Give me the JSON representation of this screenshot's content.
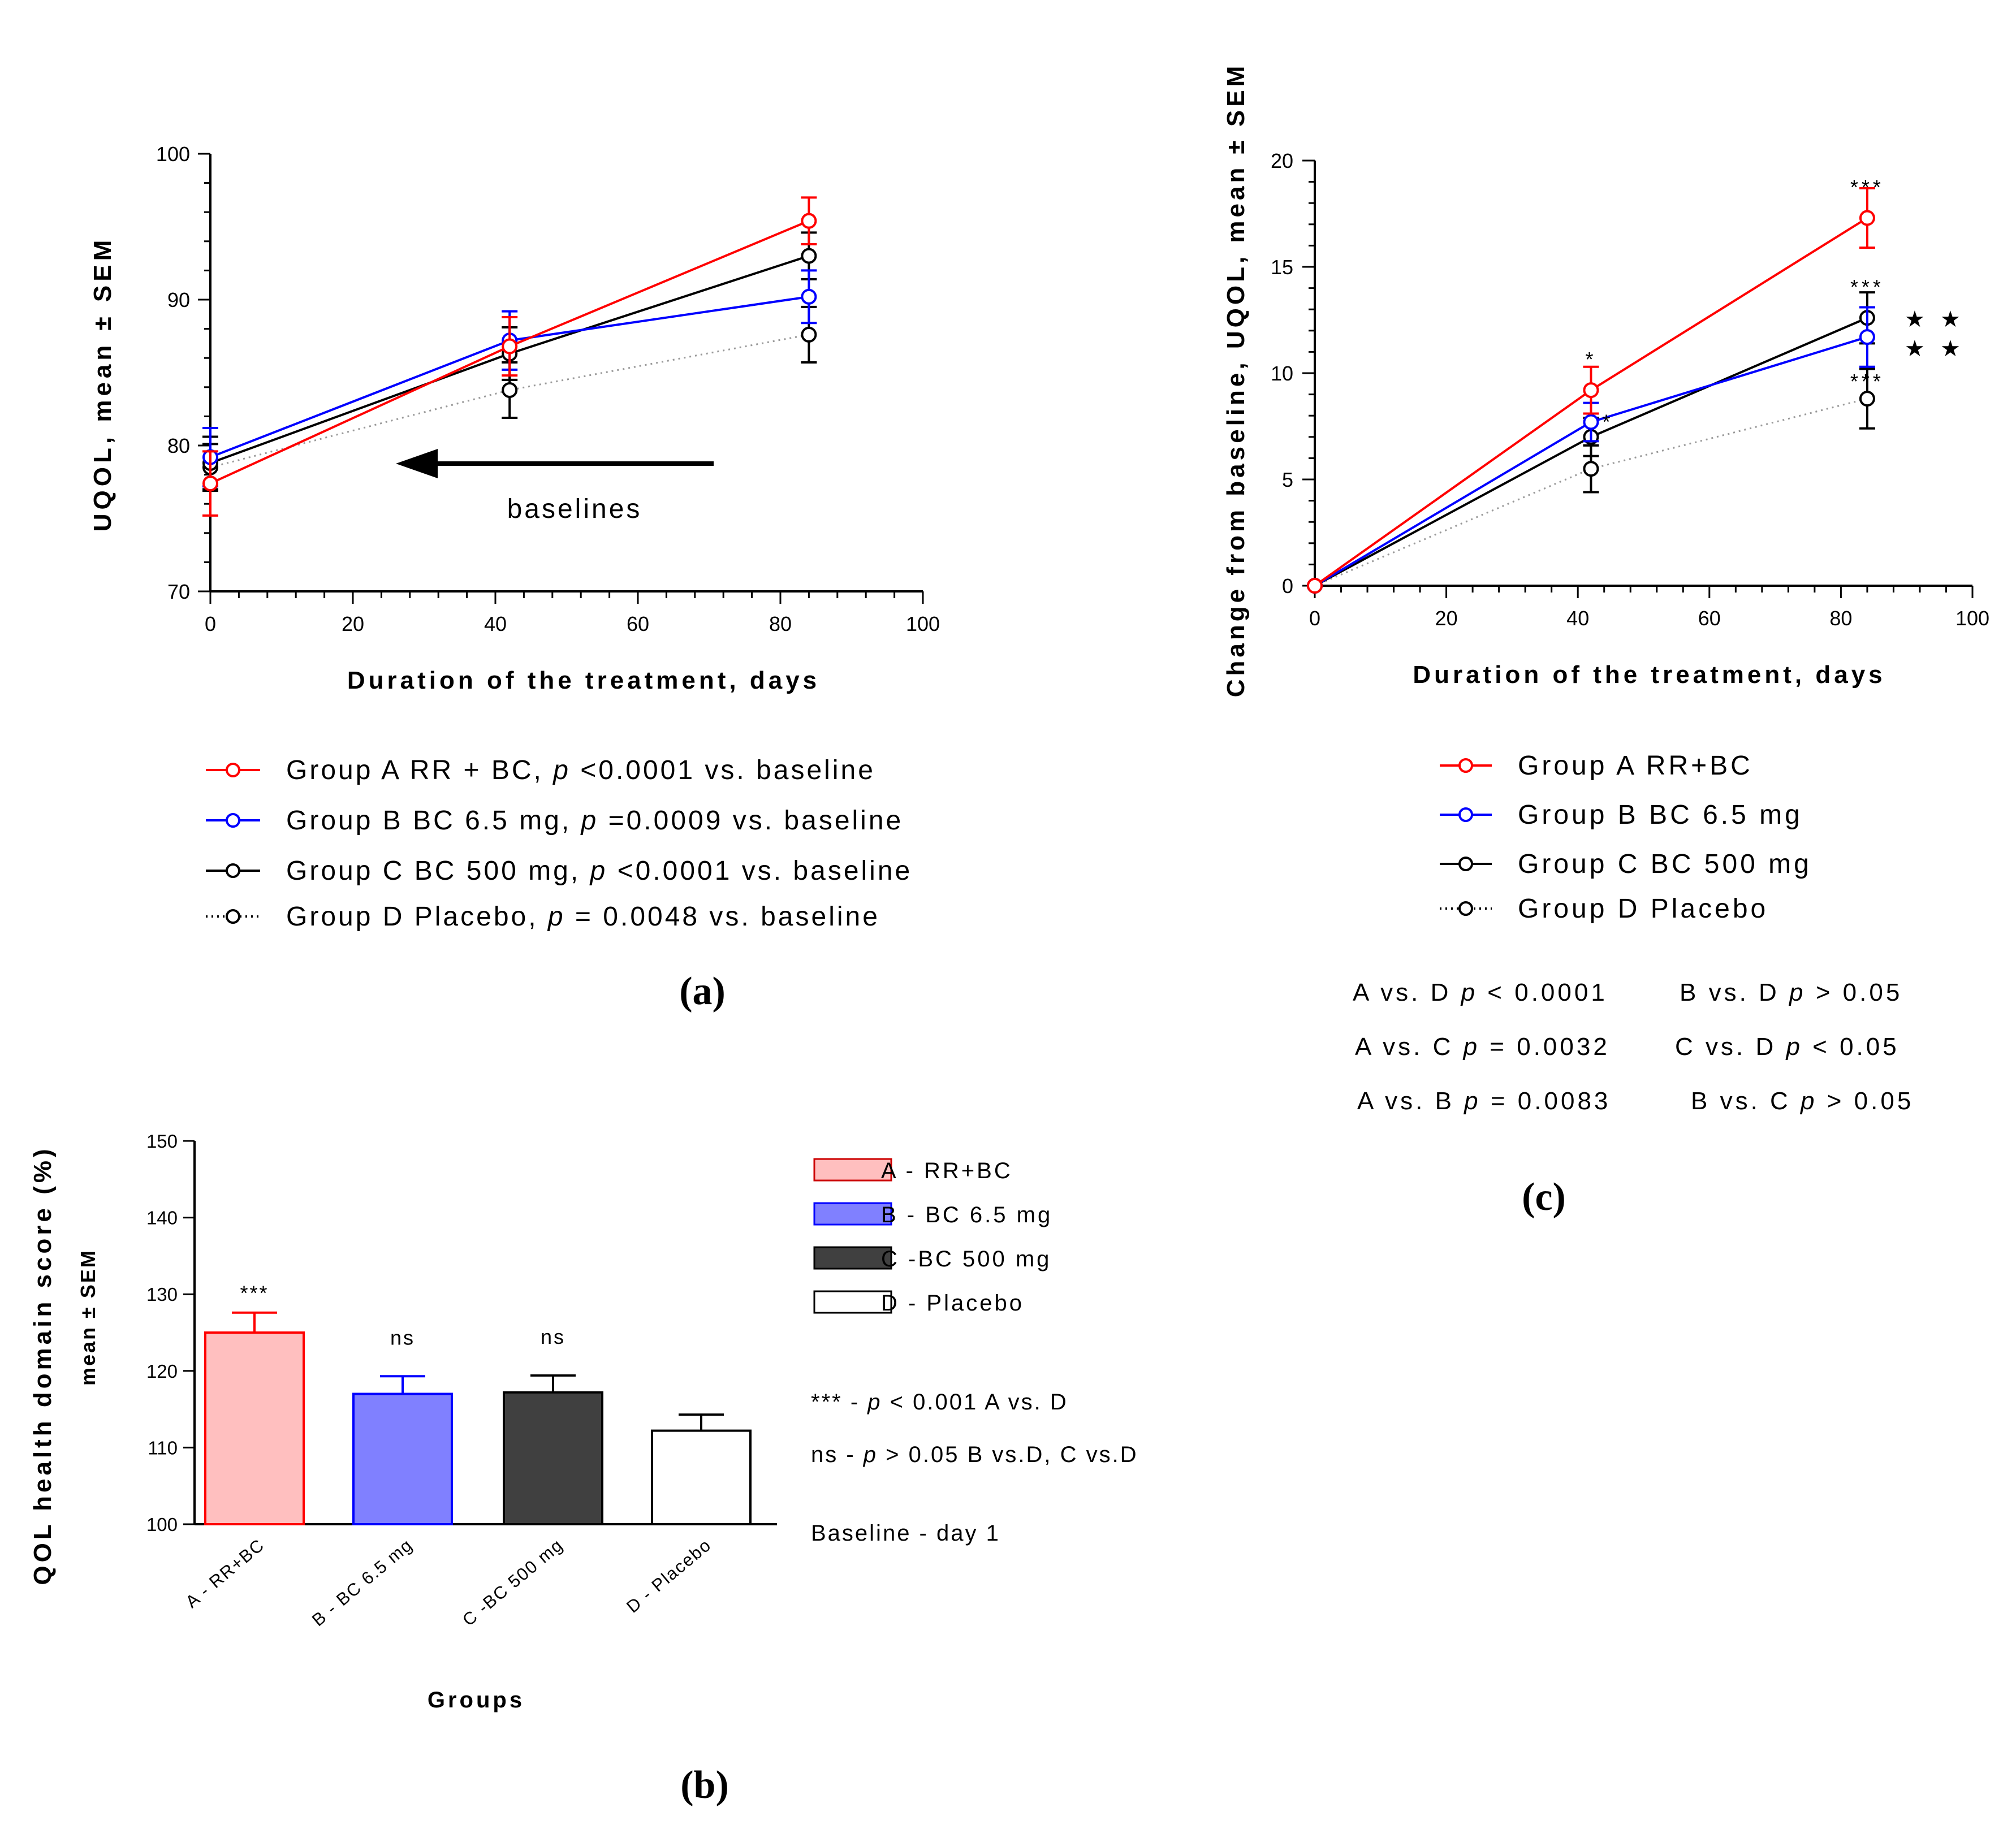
{
  "chart_data": [
    {
      "id": "a",
      "type": "line",
      "panel_label": "(a)",
      "xlabel": "Duration of the treatment, days",
      "ylabel": "UQOL, mean ± SEM",
      "xlim": [
        0,
        100
      ],
      "ylim": [
        70,
        100
      ],
      "xticks": [
        0,
        20,
        40,
        60,
        80,
        100
      ],
      "yticks": [
        70,
        80,
        90,
        100
      ],
      "annotation": "baselines",
      "series": [
        {
          "name": "Group A RR + BC, p <0.0001 vs. baseline",
          "label_main": "Group A RR + BC, ",
          "label_p": "p",
          "label_rest": " <0.0001 vs. baseline",
          "color": "#ff0000",
          "style": "solid",
          "x": [
            0,
            42,
            84
          ],
          "y": [
            77.4,
            86.8,
            95.4
          ],
          "err": [
            2.2,
            2.0,
            1.6
          ]
        },
        {
          "name": "Group B BC 6.5 mg, p =0.0009 vs. baseline",
          "label_main": "Group B BC 6.5 mg, ",
          "label_p": "p",
          "label_rest": " =0.0009 vs. baseline",
          "color": "#0000ff",
          "style": "solid",
          "x": [
            0,
            42,
            84
          ],
          "y": [
            79.2,
            87.2,
            90.2
          ],
          "err": [
            2.0,
            2.0,
            1.8
          ]
        },
        {
          "name": "Group C BC 500 mg, p <0.0001 vs. baseline",
          "label_main": "Group C BC 500 mg, ",
          "label_p": "p",
          "label_rest": " <0.0001 vs. baseline",
          "color": "#000000",
          "style": "solid",
          "x": [
            0,
            42,
            84
          ],
          "y": [
            78.8,
            86.3,
            93.0
          ],
          "err": [
            1.8,
            1.8,
            1.6
          ]
        },
        {
          "name": "Group D Placebo, p = 0.0048 vs. baseline",
          "label_main": "Group D Placebo, ",
          "label_p": "p",
          "label_rest": " = 0.0048 vs. baseline",
          "color": "#000000",
          "style": "dotted",
          "x": [
            0,
            42,
            84
          ],
          "y": [
            78.5,
            83.8,
            87.6
          ],
          "err": [
            1.6,
            1.9,
            1.9
          ]
        }
      ]
    },
    {
      "id": "b",
      "type": "bar",
      "panel_label": "(b)",
      "xlabel": "Groups",
      "ylabel": "QOL health domain score (%)",
      "ylabel2": "mean ± SEM",
      "ylim": [
        100,
        150
      ],
      "yticks": [
        100,
        110,
        120,
        130,
        140,
        150
      ],
      "categories": [
        "A - RR+BC",
        "B - BC 6.5 mg",
        "C -BC 500 mg",
        "D - Placebo"
      ],
      "values": [
        125.0,
        117.0,
        117.2,
        112.2
      ],
      "errors": [
        2.6,
        2.3,
        2.2,
        2.1
      ],
      "significance": [
        "***",
        "ns",
        "ns",
        ""
      ],
      "fill_colors": [
        "#ffbfbf",
        "#8080ff",
        "#404040",
        "#ffffff"
      ],
      "edge_colors": [
        "#ff0000",
        "#0000ff",
        "#000000",
        "#000000"
      ],
      "legend": [
        "A - RR+BC",
        "B - BC 6.5 mg",
        "C -BC 500 mg",
        "D - Placebo"
      ],
      "notes": [
        {
          "prefix": "*** -  ",
          "p": "p",
          "rest": " < 0.001 A vs. D"
        },
        {
          "prefix": "ns -  ",
          "p": "p",
          "rest": " > 0.05 B vs.D, C vs.D"
        }
      ],
      "baseline_note": "Baseline - day 1"
    },
    {
      "id": "c",
      "type": "line",
      "panel_label": "(c)",
      "xlabel": "Duration of the treatment, days",
      "ylabel": "Change from baseline, UQOL, mean ± SEM",
      "xlim": [
        0,
        100
      ],
      "ylim": [
        0,
        20
      ],
      "xticks": [
        0,
        20,
        40,
        60,
        80,
        100
      ],
      "yticks": [
        0,
        5,
        10,
        15,
        20
      ],
      "series": [
        {
          "name": "Group A RR+BC",
          "color": "#ff0000",
          "style": "solid",
          "x": [
            0,
            42,
            84
          ],
          "y": [
            0,
            9.2,
            17.3
          ],
          "err": [
            0,
            1.1,
            1.4
          ]
        },
        {
          "name": "Group B BC 6.5 mg",
          "color": "#0000ff",
          "style": "solid",
          "x": [
            0,
            42,
            84
          ],
          "y": [
            0,
            7.7,
            11.7
          ],
          "err": [
            0,
            0.9,
            1.4
          ]
        },
        {
          "name": "Group C BC 500 mg",
          "color": "#000000",
          "style": "solid",
          "x": [
            0,
            42,
            84
          ],
          "y": [
            0,
            7.0,
            12.6
          ],
          "err": [
            0,
            0.9,
            1.2
          ]
        },
        {
          "name": "Group D Placebo",
          "color": "#000000",
          "style": "dotted",
          "x": [
            0,
            42,
            84
          ],
          "y": [
            0,
            5.5,
            8.8
          ],
          "err": [
            0,
            1.1,
            1.4
          ]
        }
      ],
      "point_marks": [
        {
          "x": 42,
          "y": 9.2,
          "text": "*",
          "offset": "above-far"
        },
        {
          "x": 42,
          "y": 7.7,
          "text": "*",
          "offset": "right"
        },
        {
          "x": 84,
          "y": 17.3,
          "text": "***",
          "offset": "above-far"
        },
        {
          "x": 84,
          "y": 12.6,
          "text": "***",
          "offset": "above-far"
        },
        {
          "x": 84,
          "y": 8.8,
          "text": "***",
          "offset": "above"
        }
      ],
      "stars": [
        "★ ★",
        "★ ★"
      ],
      "comparisons": [
        [
          {
            "lhs": "A vs. D",
            "p": "p",
            "rhs": "< 0.0001"
          },
          {
            "lhs": "B vs. D",
            "p": "p",
            "rhs": "> 0.05"
          }
        ],
        [
          {
            "lhs": "A vs. C",
            "p": "p",
            "rhs": "= 0.0032"
          },
          {
            "lhs": "C vs. D",
            "p": "p",
            "rhs": "< 0.05"
          }
        ],
        [
          {
            "lhs": "A vs. B",
            "p": "p",
            "rhs": "= 0.0083"
          },
          {
            "lhs": "B vs. C",
            "p": "p",
            "rhs": "> 0.05"
          }
        ]
      ]
    }
  ]
}
